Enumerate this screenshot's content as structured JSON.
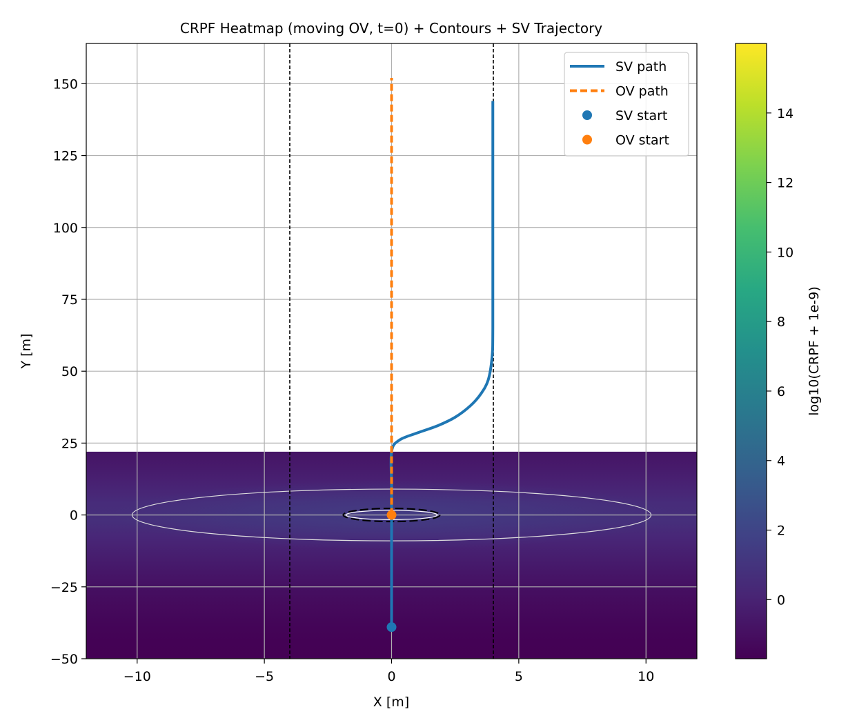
{
  "chart_data": {
    "type": "heatmap",
    "title": "CRPF Heatmap (moving OV, t=0) + Contours + SV Trajectory",
    "xlabel": "X [m]",
    "ylabel": "Y [m]",
    "xlim": [
      -12,
      12
    ],
    "ylim": [
      -50,
      164
    ],
    "xticks": [
      -10,
      -5,
      0,
      5,
      10
    ],
    "xtick_labels": [
      "−10",
      "−5",
      "0",
      "5",
      "10"
    ],
    "yticks": [
      -50,
      -25,
      0,
      25,
      50,
      75,
      100,
      125,
      150
    ],
    "ytick_labels": [
      "−50",
      "−25",
      "0",
      "25",
      "50",
      "75",
      "100",
      "125",
      "150"
    ],
    "grid": true,
    "legend_position": "top-right",
    "heatmap": {
      "x_range": [
        -12,
        12
      ],
      "y_range": [
        -50,
        22
      ],
      "colormap": "viridis",
      "value_range": [
        -1.7,
        16
      ],
      "peak_value": 1.5,
      "edge_value": -1.7
    },
    "colorbar": {
      "label": "log10(CRPF + 1e-9)",
      "range": [
        -1.7,
        16
      ],
      "ticks": [
        0,
        2,
        4,
        6,
        8,
        10,
        12,
        14
      ],
      "tick_labels": [
        "0",
        "2",
        "4",
        "6",
        "8",
        "10",
        "12",
        "14"
      ]
    },
    "lane_lines": [
      -4,
      4
    ],
    "contours": [
      {
        "center": [
          0,
          0
        ],
        "semi_x": 10.2,
        "semi_y": 9,
        "color": "#dddddd",
        "style": "solid"
      },
      {
        "center": [
          0,
          0
        ],
        "semi_x": 1.8,
        "semi_y": 1.6,
        "color": "#ffffff",
        "style": "solid"
      },
      {
        "center": [
          0,
          0
        ],
        "semi_x": 1.9,
        "semi_y": 2.3,
        "color": "#000000",
        "style": "dashed"
      }
    ],
    "series": [
      {
        "name": "SV path",
        "style": "line",
        "color": "#1f77b4",
        "x": [
          0,
          0,
          0,
          0,
          0.3,
          1.0,
          1.8,
          2.5,
          3.1,
          3.5,
          3.8,
          3.95,
          3.98,
          3.98,
          3.98
        ],
        "y": [
          -39,
          0,
          10,
          22,
          26,
          28.5,
          31,
          34,
          38,
          42,
          47,
          55,
          65,
          100,
          144
        ]
      },
      {
        "name": "OV path",
        "style": "dashed",
        "color": "#ff7f0e",
        "x": [
          0,
          0
        ],
        "y": [
          0,
          152
        ]
      },
      {
        "name": "SV start",
        "style": "point",
        "color": "#1f77b4",
        "x": [
          0
        ],
        "y": [
          -39
        ]
      },
      {
        "name": "OV start",
        "style": "point",
        "color": "#ff7f0e",
        "x": [
          0
        ],
        "y": [
          0
        ]
      }
    ]
  }
}
